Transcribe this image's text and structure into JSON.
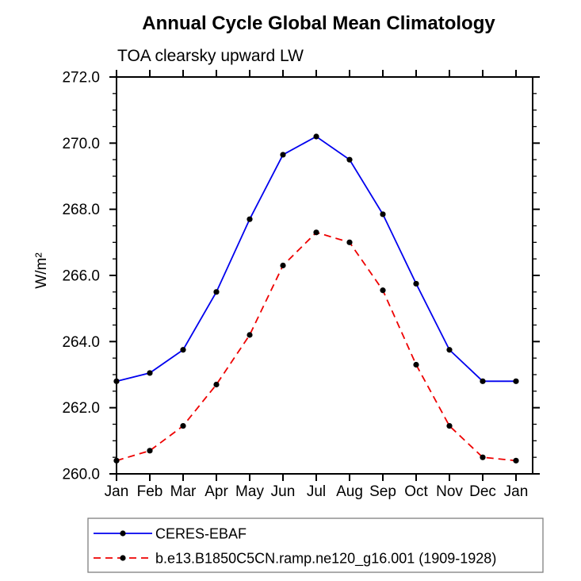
{
  "chart": {
    "title": "Annual Cycle Global Mean Climatology",
    "subtitle": "TOA clearsky upward LW",
    "ylabel": "W/m²"
  },
  "chart_data": {
    "type": "line",
    "title": "Annual Cycle Global Mean Climatology",
    "subtitle": "TOA clearsky upward LW",
    "ylabel": "W/m²",
    "xlabel": "",
    "categories": [
      "Jan",
      "Feb",
      "Mar",
      "Apr",
      "May",
      "Jun",
      "Jul",
      "Aug",
      "Sep",
      "Oct",
      "Nov",
      "Dec",
      "Jan"
    ],
    "series": [
      {
        "name": "CERES-EBAF",
        "color": "#0000ee",
        "line_style": "solid",
        "marker": "circle",
        "marker_color": "#000000",
        "values": [
          262.8,
          263.05,
          263.75,
          265.5,
          267.7,
          269.65,
          270.2,
          269.5,
          267.85,
          265.75,
          263.75,
          262.8,
          262.8
        ]
      },
      {
        "name": "b.e13.B1850C5CN.ramp.ne120_g16.001 (1909-1928)",
        "color": "#ee0000",
        "line_style": "dashed",
        "marker": "circle",
        "marker_color": "#000000",
        "values": [
          260.4,
          260.7,
          261.45,
          262.7,
          264.2,
          266.3,
          267.3,
          267.0,
          265.55,
          263.3,
          261.45,
          260.5,
          260.4
        ]
      }
    ],
    "ylim": [
      260.0,
      272.0
    ],
    "ytick_major_step": 2.0,
    "ytick_minor_step": 0.5,
    "ytick_labels": [
      "260.0",
      "262.0",
      "264.0",
      "266.0",
      "268.0",
      "270.0",
      "272.0"
    ],
    "grid": "off",
    "legend_position": "bottom-box"
  }
}
